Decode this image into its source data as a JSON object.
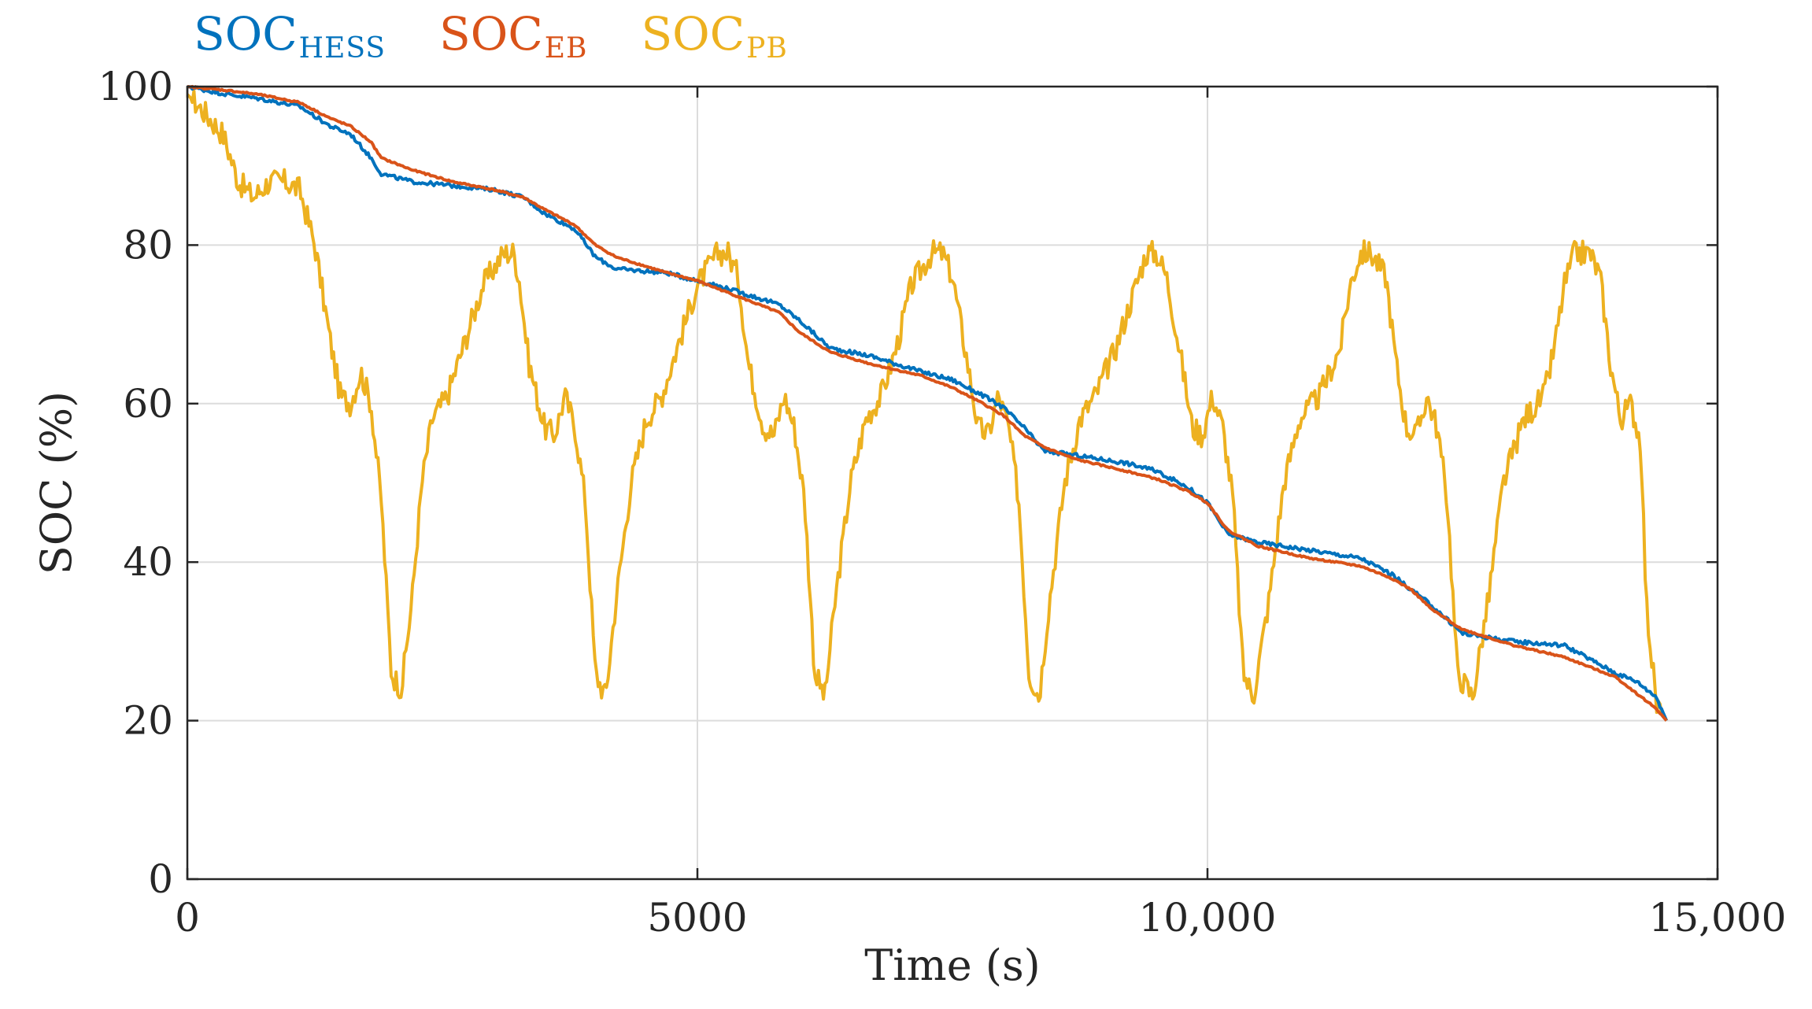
{
  "chart_data": {
    "type": "line",
    "title": "",
    "xlabel": "Time (s)",
    "ylabel": "SOC (%)",
    "xlim": [
      0,
      15000
    ],
    "ylim": [
      0,
      100
    ],
    "xticks": [
      0,
      5000,
      10000,
      15000
    ],
    "xtick_labels": [
      "0",
      "5000",
      "10,000",
      "15,000"
    ],
    "yticks": [
      0,
      20,
      40,
      60,
      80,
      100
    ],
    "ytick_labels": [
      "0",
      "20",
      "40",
      "60",
      "80",
      "100"
    ],
    "grid": true,
    "legend": {
      "placement": "top-left, above plot",
      "entries": [
        {
          "main": "SOC",
          "sub": "HESS",
          "color": "#0072BD"
        },
        {
          "main": "SOC",
          "sub": "EB",
          "color": "#D95319"
        },
        {
          "main": "SOC",
          "sub": "PB",
          "color": "#EDB120"
        }
      ]
    },
    "series": [
      {
        "name": "SOC_HESS",
        "color": "#0072BD",
        "x": [
          0,
          400,
          700,
          1100,
          1400,
          1600,
          1800,
          1900,
          2200,
          2600,
          3000,
          3300,
          3500,
          3800,
          4000,
          4200,
          4700,
          5000,
          5300,
          5800,
          6000,
          6300,
          6700,
          7200,
          7500,
          7800,
          8000,
          8200,
          8400,
          8700,
          9200,
          9500,
          9800,
          10000,
          10200,
          10500,
          11000,
          11500,
          11800,
          12000,
          12200,
          12500,
          13000,
          13500,
          14000,
          14200,
          14400,
          14500
        ],
        "values": [
          100,
          99,
          98.5,
          97.5,
          95,
          94,
          91,
          89,
          88,
          87.5,
          87,
          86,
          84,
          82,
          78.5,
          77,
          76.5,
          75.5,
          74.5,
          72.5,
          70.5,
          67,
          66,
          64,
          63,
          61,
          59.5,
          57,
          54,
          53.5,
          52.5,
          51.5,
          49.5,
          47.5,
          43.5,
          42.5,
          41.5,
          40.5,
          38.5,
          36.5,
          34.5,
          31,
          30,
          29.5,
          26,
          25,
          23,
          20
        ]
      },
      {
        "name": "SOC_EB",
        "color": "#D95319",
        "x": [
          0,
          400,
          700,
          1100,
          1400,
          1600,
          1800,
          1900,
          2200,
          2600,
          3000,
          3300,
          3500,
          3800,
          4000,
          4200,
          4700,
          5000,
          5300,
          5800,
          6000,
          6300,
          6700,
          7200,
          7500,
          7800,
          8000,
          8200,
          8400,
          8700,
          9200,
          9500,
          9800,
          10000,
          10200,
          10500,
          11000,
          11500,
          11800,
          12000,
          12200,
          12500,
          13000,
          13500,
          14000,
          14200,
          14400,
          14500
        ],
        "values": [
          100,
          99.5,
          99,
          98,
          96,
          95,
          93,
          91,
          89.5,
          88,
          87,
          86,
          84.5,
          82.5,
          80,
          78.5,
          76.5,
          75.5,
          74,
          71.5,
          69,
          66.5,
          65,
          63.5,
          62,
          60,
          58.5,
          56,
          54.5,
          53,
          51.5,
          50.5,
          49,
          47.5,
          44,
          42,
          40.5,
          39.5,
          38,
          36.5,
          34,
          31.5,
          29.5,
          28,
          25.5,
          23.5,
          21.5,
          20
        ]
      },
      {
        "name": "SOC_PB",
        "color": "#EDB120",
        "x": [
          0,
          150,
          350,
          500,
          650,
          800,
          950,
          1100,
          1250,
          1400,
          1500,
          1600,
          1700,
          1800,
          1900,
          2000,
          2100,
          2200,
          2300,
          2400,
          2550,
          2700,
          2900,
          3100,
          3200,
          3250,
          3350,
          3500,
          3600,
          3700,
          3800,
          3900,
          4000,
          4100,
          4200,
          4350,
          4500,
          4650,
          4800,
          5000,
          5200,
          5300,
          5400,
          5500,
          5650,
          5750,
          5850,
          5950,
          6050,
          6150,
          6250,
          6350,
          6500,
          6650,
          6800,
          6950,
          7100,
          7300,
          7400,
          7500,
          7650,
          7750,
          7850,
          7950,
          8050,
          8150,
          8250,
          8350,
          8450,
          8600,
          8750,
          8900,
          9100,
          9300,
          9400,
          9500,
          9600,
          9750,
          9850,
          9950,
          10050,
          10150,
          10250,
          10350,
          10450,
          10600,
          10750,
          10900,
          11100,
          11300,
          11400,
          11500,
          11600,
          11750,
          11850,
          11950,
          12050,
          12150,
          12250,
          12350,
          12450,
          12600,
          12750,
          12900,
          13100,
          13300,
          13400,
          13500,
          13600,
          13750,
          13850,
          13950,
          14050,
          14150,
          14250,
          14300,
          14400,
          14500
        ],
        "values": [
          99,
          97,
          94,
          88,
          86,
          88,
          88,
          87,
          80,
          68,
          61,
          60,
          64,
          60,
          48,
          26,
          24,
          35,
          50,
          58,
          61,
          67,
          75,
          79,
          79,
          76,
          65,
          57,
          56,
          61,
          57,
          48,
          26,
          23,
          35,
          50,
          58,
          61,
          67,
          75,
          79,
          79,
          76,
          65,
          57,
          56,
          61,
          57,
          48,
          26,
          23,
          35,
          50,
          58,
          61,
          67,
          75,
          79,
          79,
          76,
          65,
          57,
          56,
          61,
          57,
          48,
          26,
          23,
          35,
          50,
          58,
          61,
          67,
          75,
          79,
          79,
          76,
          65,
          57,
          56,
          61,
          57,
          48,
          26,
          23,
          35,
          50,
          58,
          61,
          67,
          75,
          79,
          79,
          76,
          65,
          57,
          56,
          61,
          57,
          48,
          26,
          23,
          35,
          50,
          58,
          61,
          67,
          75,
          79,
          79,
          76,
          65,
          58,
          60,
          55,
          35,
          22,
          20
        ]
      }
    ]
  }
}
